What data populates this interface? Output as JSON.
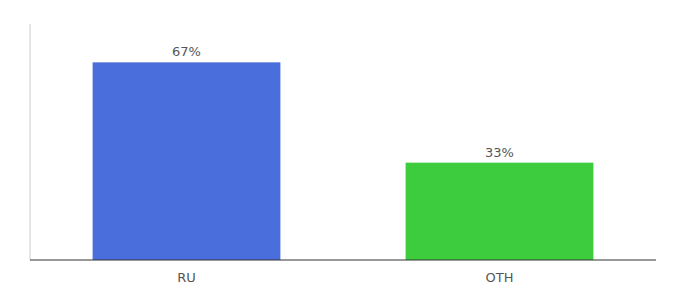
{
  "chart_data": {
    "type": "bar",
    "categories": [
      "RU",
      "OTH"
    ],
    "values": [
      67,
      33
    ],
    "value_labels": [
      "67%",
      "33%"
    ],
    "colors": [
      "#4a6fdc",
      "#3dcc3d"
    ],
    "ylim": [
      0,
      80
    ],
    "tick_labels": "x",
    "data_labels": true,
    "grid": false
  }
}
